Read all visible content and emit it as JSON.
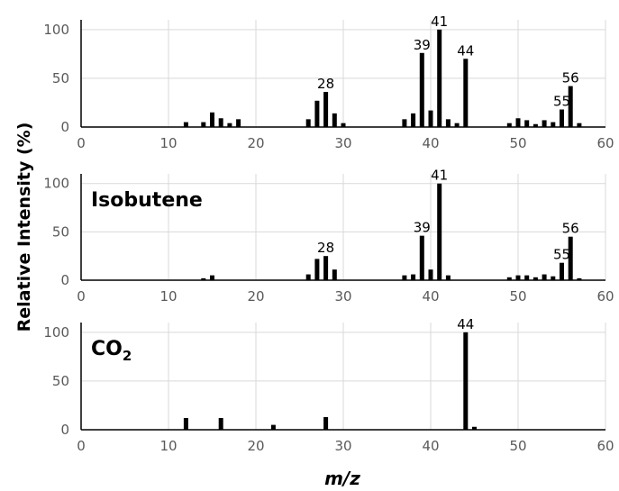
{
  "figure": {
    "ylabel": "Relative Intensity (%)",
    "xlabel": "m/z"
  },
  "chart_data": [
    {
      "type": "bar",
      "panel_label": "",
      "xlim": [
        0,
        60
      ],
      "ylim": [
        0,
        110
      ],
      "xticks": [
        0,
        10,
        20,
        30,
        40,
        50,
        60
      ],
      "yticks": [
        0,
        50,
        100
      ],
      "grid": true,
      "x": [
        12,
        14,
        15,
        16,
        17,
        18,
        26,
        27,
        28,
        29,
        30,
        37,
        38,
        39,
        40,
        41,
        42,
        43,
        44,
        49,
        50,
        51,
        52,
        53,
        54,
        55,
        56,
        57
      ],
      "values": [
        5,
        5,
        15,
        9,
        4,
        8,
        8,
        27,
        36,
        14,
        4,
        8,
        14,
        76,
        17,
        100,
        8,
        4,
        70,
        4,
        9,
        7,
        3,
        7,
        5,
        18,
        42,
        4
      ],
      "peak_labels": [
        {
          "x": 28,
          "text": "28"
        },
        {
          "x": 39,
          "text": "39"
        },
        {
          "x": 41,
          "text": "41"
        },
        {
          "x": 44,
          "text": "44"
        },
        {
          "x": 55,
          "text": "55"
        },
        {
          "x": 56,
          "text": "56"
        }
      ]
    },
    {
      "type": "bar",
      "panel_label": "Isobutene",
      "xlim": [
        0,
        60
      ],
      "ylim": [
        0,
        110
      ],
      "xticks": [
        0,
        10,
        20,
        30,
        40,
        50,
        60
      ],
      "yticks": [
        0,
        50,
        100
      ],
      "grid": true,
      "x": [
        14,
        15,
        26,
        27,
        28,
        29,
        37,
        38,
        39,
        40,
        41,
        42,
        49,
        50,
        51,
        52,
        53,
        54,
        55,
        56,
        57
      ],
      "values": [
        2,
        5,
        6,
        22,
        25,
        11,
        5,
        6,
        46,
        11,
        100,
        5,
        3,
        5,
        5,
        3,
        6,
        4,
        18,
        45,
        2
      ],
      "peak_labels": [
        {
          "x": 28,
          "text": "28"
        },
        {
          "x": 39,
          "text": "39"
        },
        {
          "x": 41,
          "text": "41"
        },
        {
          "x": 55,
          "text": "55"
        },
        {
          "x": 56,
          "text": "56"
        }
      ]
    },
    {
      "type": "bar",
      "panel_label": "CO",
      "panel_label_sub": "2",
      "xlim": [
        0,
        60
      ],
      "ylim": [
        0,
        110
      ],
      "xticks": [
        0,
        10,
        20,
        30,
        40,
        50,
        60
      ],
      "yticks": [
        0,
        50,
        100
      ],
      "grid": true,
      "x": [
        12,
        16,
        22,
        28,
        44,
        45
      ],
      "values": [
        12,
        12,
        5,
        13,
        100,
        3
      ],
      "peak_labels": [
        {
          "x": 44,
          "text": "44"
        }
      ]
    }
  ]
}
